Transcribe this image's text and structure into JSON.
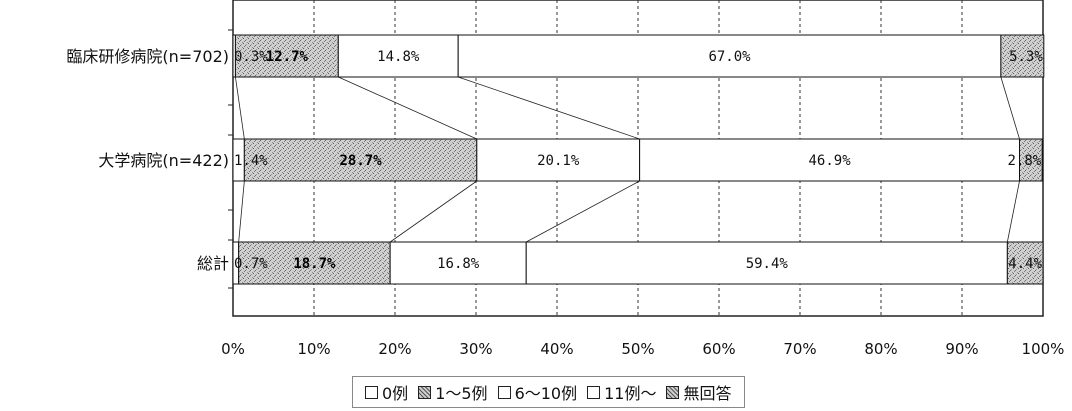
{
  "chart_data": {
    "type": "bar",
    "orientation": "horizontal",
    "stacked": true,
    "percent": true,
    "categories": [
      "臨床研修病院(n=702)",
      "大学病院(n=422)",
      "総計"
    ],
    "series": [
      {
        "name": "0例",
        "values": [
          0.3,
          1.4,
          0.7
        ],
        "labels": [
          "0.3%",
          "1.4%",
          "0.7%"
        ]
      },
      {
        "name": "1～5例",
        "values": [
          12.7,
          28.7,
          18.7
        ],
        "labels": [
          "12.7%",
          "28.7%",
          "18.7%"
        ]
      },
      {
        "name": "6～10例",
        "values": [
          14.8,
          20.1,
          16.8
        ],
        "labels": [
          "14.8%",
          "20.1%",
          "16.8%"
        ]
      },
      {
        "name": "11例～",
        "values": [
          67.0,
          46.9,
          59.4
        ],
        "labels": [
          "67.0%",
          "46.9%",
          "59.4%"
        ]
      },
      {
        "name": "無回答",
        "values": [
          5.3,
          2.8,
          4.4
        ],
        "labels": [
          "5.3%",
          "2.8%",
          "4.4%"
        ]
      }
    ],
    "xlim": [
      0,
      100
    ],
    "xticks": [
      "0%",
      "10%",
      "20%",
      "30%",
      "40%",
      "50%",
      "60%",
      "70%",
      "80%",
      "90%",
      "100%"
    ],
    "grid": "vertical dashed",
    "series_lines": true,
    "legend_position": "bottom",
    "colors": {
      "0例": "#ffffff",
      "1～5例": "#b8b8b8",
      "6～10例": "#ffffff",
      "11例～": "#ffffff",
      "無回答": "#c4c4c4"
    }
  }
}
